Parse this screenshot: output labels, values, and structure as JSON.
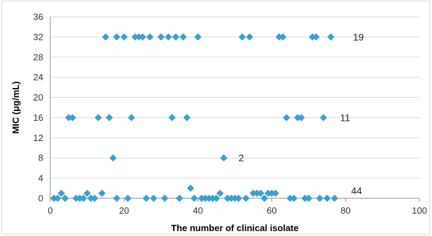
{
  "chart_data": {
    "type": "scatter",
    "xlabel": "The number of clinical isolate",
    "ylabel": "MIC (μg/mL)",
    "xlim": [
      0,
      100
    ],
    "ylim": [
      0,
      36
    ],
    "x_ticks": [
      "0",
      "20",
      "40",
      "60",
      "80",
      "100"
    ],
    "y_ticks": [
      "0",
      "4",
      "8",
      "12",
      "16",
      "20",
      "24",
      "28",
      "32",
      "36"
    ],
    "grid": "horizontal",
    "marker": "diamond",
    "series_color": "#3aa0cc",
    "annotations": [
      {
        "text": "19",
        "x": 82,
        "y": 32
      },
      {
        "text": "11",
        "x": 78.5,
        "y": 16
      },
      {
        "text": "2",
        "x": 51,
        "y": 8
      },
      {
        "text": "44",
        "x": 81.5,
        "y": 1.5
      }
    ],
    "points": [
      {
        "x": 15,
        "y": 32
      },
      {
        "x": 18,
        "y": 32
      },
      {
        "x": 20,
        "y": 32
      },
      {
        "x": 23,
        "y": 32
      },
      {
        "x": 24,
        "y": 32
      },
      {
        "x": 25,
        "y": 32
      },
      {
        "x": 27,
        "y": 32
      },
      {
        "x": 30,
        "y": 32
      },
      {
        "x": 32,
        "y": 32
      },
      {
        "x": 34,
        "y": 32
      },
      {
        "x": 36,
        "y": 32
      },
      {
        "x": 40,
        "y": 32
      },
      {
        "x": 52,
        "y": 32
      },
      {
        "x": 54,
        "y": 32
      },
      {
        "x": 62,
        "y": 32
      },
      {
        "x": 63,
        "y": 32
      },
      {
        "x": 71,
        "y": 32
      },
      {
        "x": 72,
        "y": 32
      },
      {
        "x": 76,
        "y": 32
      },
      {
        "x": 5,
        "y": 16
      },
      {
        "x": 6,
        "y": 16
      },
      {
        "x": 13,
        "y": 16
      },
      {
        "x": 16,
        "y": 16
      },
      {
        "x": 22,
        "y": 16
      },
      {
        "x": 33,
        "y": 16
      },
      {
        "x": 37,
        "y": 16
      },
      {
        "x": 64,
        "y": 16
      },
      {
        "x": 67,
        "y": 16
      },
      {
        "x": 68,
        "y": 16
      },
      {
        "x": 74,
        "y": 16
      },
      {
        "x": 17,
        "y": 8
      },
      {
        "x": 47,
        "y": 8
      },
      {
        "x": 1,
        "y": 0
      },
      {
        "x": 2,
        "y": 0
      },
      {
        "x": 3,
        "y": 1
      },
      {
        "x": 4,
        "y": 0
      },
      {
        "x": 7,
        "y": 0
      },
      {
        "x": 8,
        "y": 0
      },
      {
        "x": 9,
        "y": 0
      },
      {
        "x": 10,
        "y": 1
      },
      {
        "x": 11,
        "y": 0
      },
      {
        "x": 12,
        "y": 0
      },
      {
        "x": 14,
        "y": 1
      },
      {
        "x": 18,
        "y": 0
      },
      {
        "x": 21,
        "y": 0
      },
      {
        "x": 26,
        "y": 0
      },
      {
        "x": 28,
        "y": 0
      },
      {
        "x": 31,
        "y": 0
      },
      {
        "x": 35,
        "y": 0
      },
      {
        "x": 38,
        "y": 2
      },
      {
        "x": 39,
        "y": 0
      },
      {
        "x": 41,
        "y": 0
      },
      {
        "x": 42,
        "y": 0
      },
      {
        "x": 43,
        "y": 0
      },
      {
        "x": 44,
        "y": 0
      },
      {
        "x": 45,
        "y": 0
      },
      {
        "x": 46,
        "y": 1
      },
      {
        "x": 48,
        "y": 0
      },
      {
        "x": 49,
        "y": 0
      },
      {
        "x": 50,
        "y": 0
      },
      {
        "x": 51,
        "y": 0
      },
      {
        "x": 53,
        "y": 0
      },
      {
        "x": 55,
        "y": 1
      },
      {
        "x": 56,
        "y": 1
      },
      {
        "x": 57,
        "y": 1
      },
      {
        "x": 58,
        "y": 0
      },
      {
        "x": 59,
        "y": 1
      },
      {
        "x": 60,
        "y": 1
      },
      {
        "x": 61,
        "y": 1
      },
      {
        "x": 65,
        "y": 0
      },
      {
        "x": 66,
        "y": 0
      },
      {
        "x": 69,
        "y": 0
      },
      {
        "x": 70,
        "y": 0
      },
      {
        "x": 73,
        "y": 0
      },
      {
        "x": 75,
        "y": 0
      },
      {
        "x": 77,
        "y": 0
      }
    ]
  }
}
